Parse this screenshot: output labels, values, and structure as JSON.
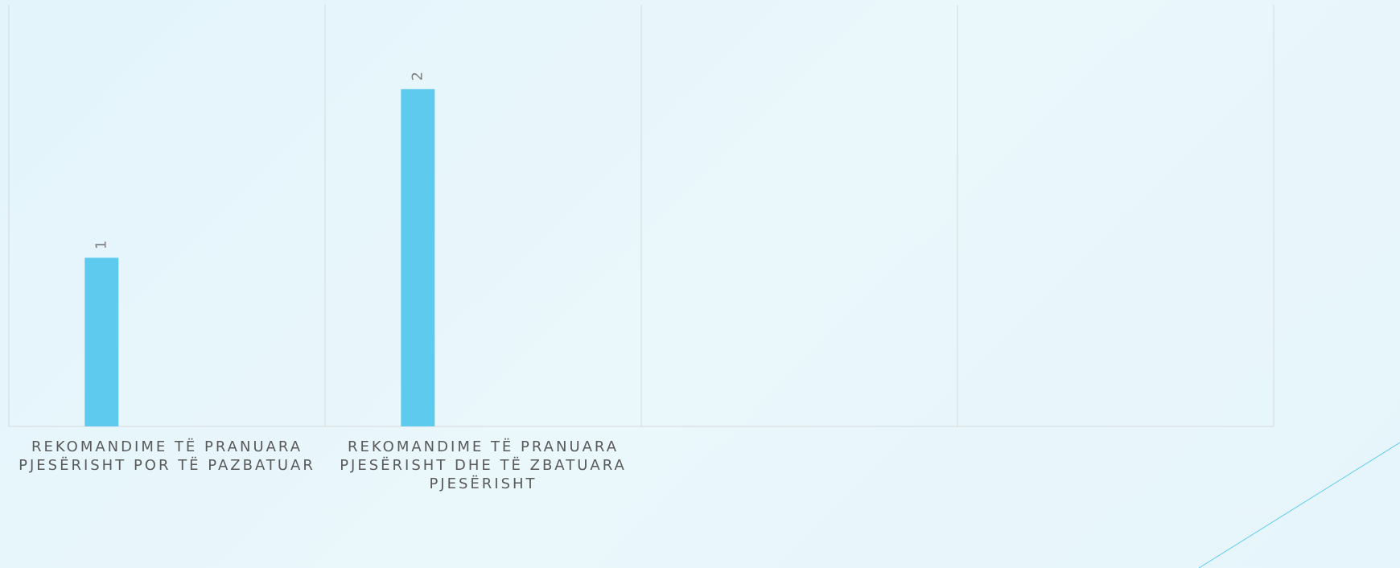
{
  "chart_data": {
    "type": "bar",
    "categories": [
      "Rekomandime të pranuara pjesërisht por të pazbatuar",
      "Rekomandime të pranuara pjesërisht dhe të zbatuara pjesërisht",
      null,
      null
    ],
    "values": [
      1,
      2,
      null,
      null
    ],
    "color": "#5ecbee",
    "ylim": [
      0,
      2.5
    ]
  }
}
